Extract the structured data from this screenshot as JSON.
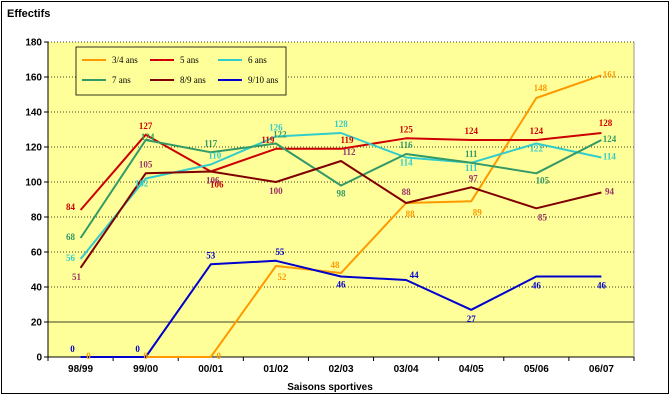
{
  "chart_data": {
    "type": "line",
    "title": "Effectifs",
    "xlabel": "Saisons sportives",
    "ylabel": "",
    "categories": [
      "98/99",
      "99/00",
      "00/01",
      "01/02",
      "02/03",
      "03/04",
      "04/05",
      "05/06",
      "06/07"
    ],
    "ylim": [
      0,
      180
    ],
    "yticks": [
      0,
      20,
      40,
      60,
      80,
      100,
      120,
      140,
      160,
      180
    ],
    "grid": true,
    "plot_background": "#ffff99",
    "legend_position": "top-left",
    "series": [
      {
        "name": "3/4 ans",
        "color": "#ff9900",
        "values": [
          0,
          0,
          0,
          52,
          48,
          88,
          89,
          148,
          161
        ],
        "labels": [
          "0",
          "0",
          "0",
          "52",
          "48",
          "88",
          "89",
          "148",
          "161"
        ]
      },
      {
        "name": "5 ans",
        "color": "#cc0000",
        "values": [
          84,
          127,
          106,
          119,
          119,
          125,
          124,
          124,
          128
        ],
        "labels": [
          "84",
          "127",
          "106",
          "119",
          "119",
          "125",
          "124",
          "124",
          "128"
        ]
      },
      {
        "name": "6 ans",
        "color": "#33cccc",
        "values": [
          56,
          102,
          110,
          126,
          128,
          114,
          111,
          122,
          114
        ],
        "labels": [
          "56",
          "102",
          "110",
          "126",
          "128",
          "114",
          "111",
          "122",
          "114"
        ]
      },
      {
        "name": "7 ans",
        "color": "#339966",
        "values": [
          68,
          124,
          117,
          122,
          98,
          116,
          111,
          105,
          124
        ],
        "labels": [
          "68",
          "124",
          "117",
          "122",
          "98",
          "116",
          "111",
          "105",
          "124"
        ]
      },
      {
        "name": "8/9 ans",
        "color": "#800000",
        "values": [
          51,
          105,
          106,
          100,
          112,
          88,
          97,
          85,
          94
        ],
        "labels": [
          "51",
          "105",
          "106",
          "100",
          "112",
          "88",
          "97",
          "85",
          "94"
        ]
      },
      {
        "name": "9/10 ans",
        "color": "#0000cc",
        "values": [
          0,
          0,
          53,
          55,
          46,
          44,
          27,
          46,
          46
        ],
        "labels": [
          "0",
          "0",
          "53",
          "55",
          "46",
          "44",
          "27",
          "46",
          "46"
        ]
      }
    ],
    "label_colors": {
      "3/4 ans": "#ff9900",
      "5 ans": "#cc0000",
      "6 ans": "#33cccc",
      "7 ans": "#339966",
      "8/9 ans": "#993366",
      "9/10 ans": "#0000cc"
    }
  }
}
